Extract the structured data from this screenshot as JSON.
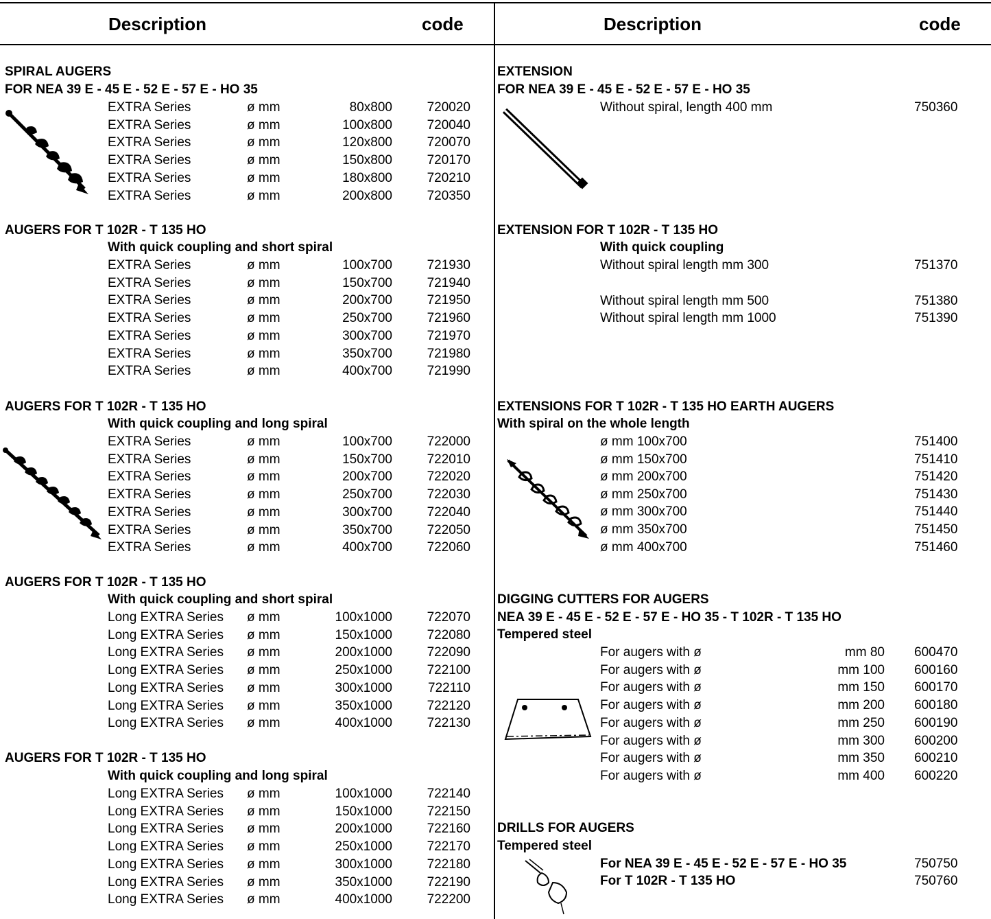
{
  "header": {
    "left_description": "Description",
    "left_code": "code",
    "right_description": "Description",
    "right_code": "code"
  },
  "spiral_augers": {
    "title": "SPIRAL AUGERS",
    "subtitle": "FOR NEA 39 E - 45 E - 52 E - 57 E - HO 35",
    "unit": "ø mm",
    "rows": [
      {
        "series": "EXTRA Series",
        "size": "80x800",
        "code": "720020"
      },
      {
        "series": "EXTRA Series",
        "size": "100x800",
        "code": "720040"
      },
      {
        "series": "EXTRA Series",
        "size": "120x800",
        "code": "720070"
      },
      {
        "series": "EXTRA Series",
        "size": "150x800",
        "code": "720170"
      },
      {
        "series": "EXTRA Series",
        "size": "180x800",
        "code": "720210"
      },
      {
        "series": "EXTRA Series",
        "size": "200x800",
        "code": "720350"
      }
    ]
  },
  "augers_short": {
    "title": "AUGERS FOR T 102R - T 135 HO",
    "subtitle": "With quick coupling and short spiral",
    "unit": "ø mm",
    "rows": [
      {
        "series": "EXTRA Series",
        "size": "100x700",
        "code": "721930"
      },
      {
        "series": "EXTRA Series",
        "size": "150x700",
        "code": "721940"
      },
      {
        "series": "EXTRA Series",
        "size": "200x700",
        "code": "721950"
      },
      {
        "series": "EXTRA Series",
        "size": "250x700",
        "code": "721960"
      },
      {
        "series": "EXTRA Series",
        "size": "300x700",
        "code": "721970"
      },
      {
        "series": "EXTRA Series",
        "size": "350x700",
        "code": "721980"
      },
      {
        "series": "EXTRA Series",
        "size": "400x700",
        "code": "721990"
      }
    ]
  },
  "augers_long": {
    "title": "AUGERS FOR T 102R - T 135 HO",
    "subtitle": "With quick coupling and long spiral",
    "unit": "ø mm",
    "rows": [
      {
        "series": "EXTRA Series",
        "size": "100x700",
        "code": "722000"
      },
      {
        "series": "EXTRA Series",
        "size": "150x700",
        "code": "722010"
      },
      {
        "series": "EXTRA Series",
        "size": "200x700",
        "code": "722020"
      },
      {
        "series": "EXTRA Series",
        "size": "250x700",
        "code": "722030"
      },
      {
        "series": "EXTRA Series",
        "size": "300x700",
        "code": "722040"
      },
      {
        "series": "EXTRA Series",
        "size": "350x700",
        "code": "722050"
      },
      {
        "series": "EXTRA Series",
        "size": "400x700",
        "code": "722060"
      }
    ]
  },
  "augers_long_short": {
    "title": "AUGERS FOR T  102R - T 135 HO",
    "subtitle": "With quick coupling and short spiral",
    "unit": "ø mm",
    "rows": [
      {
        "series": "Long EXTRA Series",
        "size": "100x1000",
        "code": "722070"
      },
      {
        "series": "Long EXTRA Series",
        "size": "150x1000",
        "code": "722080"
      },
      {
        "series": "Long EXTRA Series",
        "size": "200x1000",
        "code": "722090"
      },
      {
        "series": "Long EXTRA Series",
        "size": "250x1000",
        "code": "722100"
      },
      {
        "series": "Long EXTRA Series",
        "size": "300x1000",
        "code": "722110"
      },
      {
        "series": "Long EXTRA Series",
        "size": "350x1000",
        "code": "722120"
      },
      {
        "series": "Long EXTRA Series",
        "size": "400x1000",
        "code": "722130"
      }
    ]
  },
  "augers_long_long": {
    "title": "AUGERS FOR T 102R  - T 135 HO",
    "subtitle": "With quick coupling and long spiral",
    "unit": "ø mm",
    "rows": [
      {
        "series": "Long EXTRA Series",
        "size": "100x1000",
        "code": "722140"
      },
      {
        "series": "Long EXTRA Series",
        "size": "150x1000",
        "code": "722150"
      },
      {
        "series": "Long EXTRA Series",
        "size": "200x1000",
        "code": "722160"
      },
      {
        "series": "Long EXTRA Series",
        "size": "250x1000",
        "code": "722170"
      },
      {
        "series": "Long EXTRA Series",
        "size": "300x1000",
        "code": "722180"
      },
      {
        "series": "Long EXTRA Series",
        "size": "350x1000",
        "code": "722190"
      },
      {
        "series": "Long EXTRA Series",
        "size": "400x1000",
        "code": "722200"
      }
    ]
  },
  "extension": {
    "title": "EXTENSION",
    "subtitle": "FOR NEA 39 E - 45 E - 52 E - 57 E - HO 35",
    "rows": [
      {
        "desc": "Without spiral, length 400 mm",
        "code": "750360"
      }
    ]
  },
  "extension_t102": {
    "title": "EXTENSION FOR T 102R - T 135 HO",
    "subtitle": "With quick coupling",
    "rows": [
      {
        "desc": "Without spiral length mm 300",
        "code": "751370"
      },
      {
        "desc": "Without spiral length mm 500",
        "code": "751380"
      },
      {
        "desc": "Without spiral length mm 1000",
        "code": "751390"
      }
    ]
  },
  "extensions_earth": {
    "title": "EXTENSIONS FOR T 102R - T 135 HO EARTH AUGERS",
    "subtitle": "With spiral on the whole length",
    "rows": [
      {
        "desc": "ø mm 100x700",
        "code": "751400"
      },
      {
        "desc": "ø mm 150x700",
        "code": "751410"
      },
      {
        "desc": "ø mm 200x700",
        "code": "751420"
      },
      {
        "desc": "ø mm 250x700",
        "code": "751430"
      },
      {
        "desc": "ø mm 300x700",
        "code": "751440"
      },
      {
        "desc": "ø mm 350x700",
        "code": "751450"
      },
      {
        "desc": "ø mm 400x700",
        "code": "751460"
      }
    ]
  },
  "digging_cutters": {
    "title": "DIGGING CUTTERS FOR AUGERS",
    "subtitle": "NEA 39 E - 45 E - 52 E - 57 E - HO 35 - T 102R  - T 135 HO",
    "subtitle2": "Tempered steel",
    "label": "For augers with ø",
    "rows": [
      {
        "size": "mm 80",
        "code": "600470"
      },
      {
        "size": "mm 100",
        "code": "600160"
      },
      {
        "size": "mm 150",
        "code": "600170"
      },
      {
        "size": "mm 200",
        "code": "600180"
      },
      {
        "size": "mm 250",
        "code": "600190"
      },
      {
        "size": "mm 300",
        "code": "600200"
      },
      {
        "size": "mm 350",
        "code": "600210"
      },
      {
        "size": "mm 400",
        "code": "600220"
      }
    ]
  },
  "drills": {
    "title": "DRILLS FOR AUGERS",
    "subtitle": "Tempered steel",
    "rows": [
      {
        "desc": "For NEA 39 E - 45 E - 52 E - 57 E - HO 35",
        "code": "750750"
      },
      {
        "desc": "For T 102R -  T 135 HO",
        "code": "750760"
      }
    ]
  }
}
